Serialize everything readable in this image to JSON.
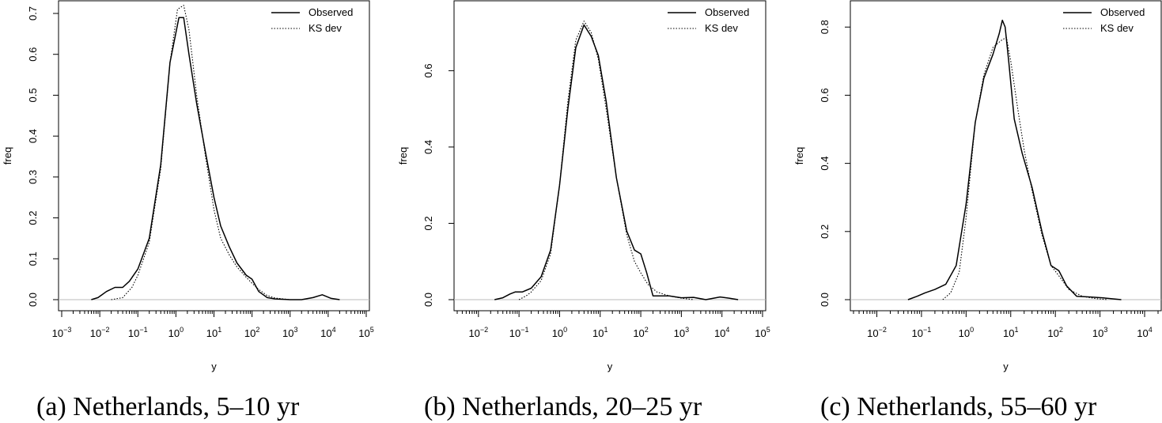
{
  "chart_data": [
    {
      "type": "line",
      "caption": "(a) Netherlands, 5–10 yr",
      "xlabel": "y",
      "ylabel": "freq",
      "xscale": "log",
      "xlim": [
        0.001,
        100000
      ],
      "xticks": [
        0.001,
        0.01,
        0.1,
        1,
        10,
        100,
        1000,
        10000,
        100000
      ],
      "xtick_labels": [
        {
          "base": "10",
          "exp": "−3"
        },
        {
          "base": "10",
          "exp": "−2"
        },
        {
          "base": "10",
          "exp": "−1"
        },
        {
          "base": "10",
          "exp": "0"
        },
        {
          "base": "10",
          "exp": "1"
        },
        {
          "base": "10",
          "exp": "2"
        },
        {
          "base": "10",
          "exp": "3"
        },
        {
          "base": "10",
          "exp": "4"
        },
        {
          "base": "10",
          "exp": "5"
        }
      ],
      "ylim": [
        0,
        0.7
      ],
      "yticks": [
        0.0,
        0.1,
        0.2,
        0.3,
        0.4,
        0.5,
        0.6,
        0.7
      ],
      "ytick_labels": [
        "0.0",
        "0.1",
        "0.2",
        "0.3",
        "0.4",
        "0.5",
        "0.6",
        "0.7"
      ],
      "legend_position": "top-right",
      "series": [
        {
          "name": "Observed",
          "style": "solid",
          "x": [
            0.006,
            0.009,
            0.015,
            0.025,
            0.04,
            0.06,
            0.1,
            0.2,
            0.4,
            0.7,
            1.2,
            1.6,
            2.2,
            3.5,
            6,
            10,
            15,
            25,
            40,
            70,
            100,
            150,
            250,
            400,
            1000,
            2000,
            4000,
            7000,
            12000,
            20000
          ],
          "y": [
            0.0,
            0.005,
            0.02,
            0.03,
            0.03,
            0.045,
            0.075,
            0.15,
            0.33,
            0.58,
            0.69,
            0.69,
            0.6,
            0.48,
            0.36,
            0.25,
            0.18,
            0.13,
            0.09,
            0.06,
            0.05,
            0.02,
            0.005,
            0.002,
            0.0,
            0.0,
            0.005,
            0.012,
            0.003,
            0.0
          ]
        },
        {
          "name": "KS dev",
          "style": "dotted",
          "x": [
            0.02,
            0.04,
            0.07,
            0.1,
            0.2,
            0.4,
            0.7,
            1.1,
            1.6,
            2.2,
            3.5,
            6,
            10,
            15,
            25,
            40,
            70,
            100,
            150,
            250,
            400,
            1000
          ],
          "y": [
            0.0,
            0.005,
            0.03,
            0.06,
            0.14,
            0.32,
            0.58,
            0.71,
            0.72,
            0.66,
            0.5,
            0.35,
            0.22,
            0.15,
            0.11,
            0.08,
            0.055,
            0.04,
            0.025,
            0.01,
            0.004,
            0.0
          ]
        }
      ]
    },
    {
      "type": "line",
      "caption": "(b) Netherlands, 20–25 yr",
      "xlabel": "y",
      "ylabel": "freq",
      "xscale": "log",
      "xlim": [
        0.003,
        100000
      ],
      "xticks": [
        0.01,
        0.1,
        1,
        10,
        100,
        1000,
        10000,
        100000
      ],
      "xtick_labels": [
        {
          "base": "10",
          "exp": "−2"
        },
        {
          "base": "10",
          "exp": "−1"
        },
        {
          "base": "10",
          "exp": "0"
        },
        {
          "base": "10",
          "exp": "1"
        },
        {
          "base": "10",
          "exp": "2"
        },
        {
          "base": "10",
          "exp": "3"
        },
        {
          "base": "10",
          "exp": "4"
        },
        {
          "base": "10",
          "exp": "5"
        }
      ],
      "ylim": [
        0,
        0.75
      ],
      "yticks": [
        0.0,
        0.2,
        0.4,
        0.6
      ],
      "ytick_labels": [
        "0.0",
        "0.2",
        "0.4",
        "0.6"
      ],
      "legend_position": "top-right",
      "series": [
        {
          "name": "Observed",
          "style": "solid",
          "x": [
            0.025,
            0.04,
            0.06,
            0.08,
            0.12,
            0.2,
            0.35,
            0.6,
            1,
            1.6,
            2.5,
            4,
            6,
            9,
            14,
            25,
            45,
            70,
            100,
            140,
            200,
            350,
            500,
            1000,
            2000,
            4000,
            9000,
            15000,
            25000
          ],
          "y": [
            0.0,
            0.005,
            0.015,
            0.02,
            0.02,
            0.03,
            0.06,
            0.13,
            0.3,
            0.5,
            0.66,
            0.72,
            0.69,
            0.64,
            0.52,
            0.32,
            0.18,
            0.13,
            0.12,
            0.07,
            0.01,
            0.01,
            0.01,
            0.005,
            0.006,
            0.0,
            0.007,
            0.004,
            0.0
          ]
        },
        {
          "name": "KS dev",
          "style": "dotted",
          "x": [
            0.1,
            0.15,
            0.2,
            0.35,
            0.6,
            1,
            1.6,
            2.5,
            4,
            6,
            9,
            14,
            25,
            45,
            70,
            100,
            150,
            250,
            500,
            1000,
            2000
          ],
          "y": [
            0.0,
            0.01,
            0.02,
            0.05,
            0.12,
            0.3,
            0.52,
            0.68,
            0.73,
            0.7,
            0.63,
            0.5,
            0.32,
            0.17,
            0.1,
            0.07,
            0.04,
            0.02,
            0.01,
            0.004,
            0.0
          ]
        }
      ]
    },
    {
      "type": "line",
      "caption": "(c) Netherlands, 55–60 yr",
      "xlabel": "y",
      "ylabel": "freq",
      "xscale": "log",
      "xlim": [
        0.003,
        20000
      ],
      "xticks": [
        0.01,
        0.1,
        1,
        10,
        100,
        1000,
        10000
      ],
      "xtick_labels": [
        {
          "base": "10",
          "exp": "−2"
        },
        {
          "base": "10",
          "exp": "−1"
        },
        {
          "base": "10",
          "exp": "0"
        },
        {
          "base": "10",
          "exp": "1"
        },
        {
          "base": "10",
          "exp": "2"
        },
        {
          "base": "10",
          "exp": "3"
        },
        {
          "base": "10",
          "exp": "4"
        }
      ],
      "ylim": [
        0,
        0.84
      ],
      "yticks": [
        0.0,
        0.2,
        0.4,
        0.6,
        0.8
      ],
      "ytick_labels": [
        "0.0",
        "0.2",
        "0.4",
        "0.6",
        "0.8"
      ],
      "legend_position": "top-right",
      "series": [
        {
          "name": "Observed",
          "style": "solid",
          "x": [
            0.05,
            0.08,
            0.12,
            0.2,
            0.35,
            0.6,
            1,
            1.6,
            2.5,
            4,
            5.5,
            6.5,
            7.5,
            9,
            12,
            18,
            30,
            50,
            80,
            120,
            180,
            300,
            600,
            1200,
            3000
          ],
          "y": [
            0.0,
            0.01,
            0.02,
            0.03,
            0.045,
            0.1,
            0.28,
            0.52,
            0.65,
            0.72,
            0.78,
            0.82,
            0.8,
            0.7,
            0.53,
            0.43,
            0.33,
            0.2,
            0.1,
            0.085,
            0.04,
            0.01,
            0.008,
            0.005,
            0.0
          ]
        },
        {
          "name": "KS dev",
          "style": "dotted",
          "x": [
            0.3,
            0.45,
            0.7,
            1,
            1.6,
            2.5,
            4,
            6,
            8,
            10,
            14,
            20,
            30,
            50,
            80,
            120,
            200,
            400,
            800,
            1500
          ],
          "y": [
            0.0,
            0.02,
            0.08,
            0.24,
            0.52,
            0.66,
            0.74,
            0.76,
            0.77,
            0.7,
            0.57,
            0.44,
            0.32,
            0.19,
            0.1,
            0.07,
            0.03,
            0.01,
            0.003,
            0.0
          ]
        }
      ]
    }
  ]
}
